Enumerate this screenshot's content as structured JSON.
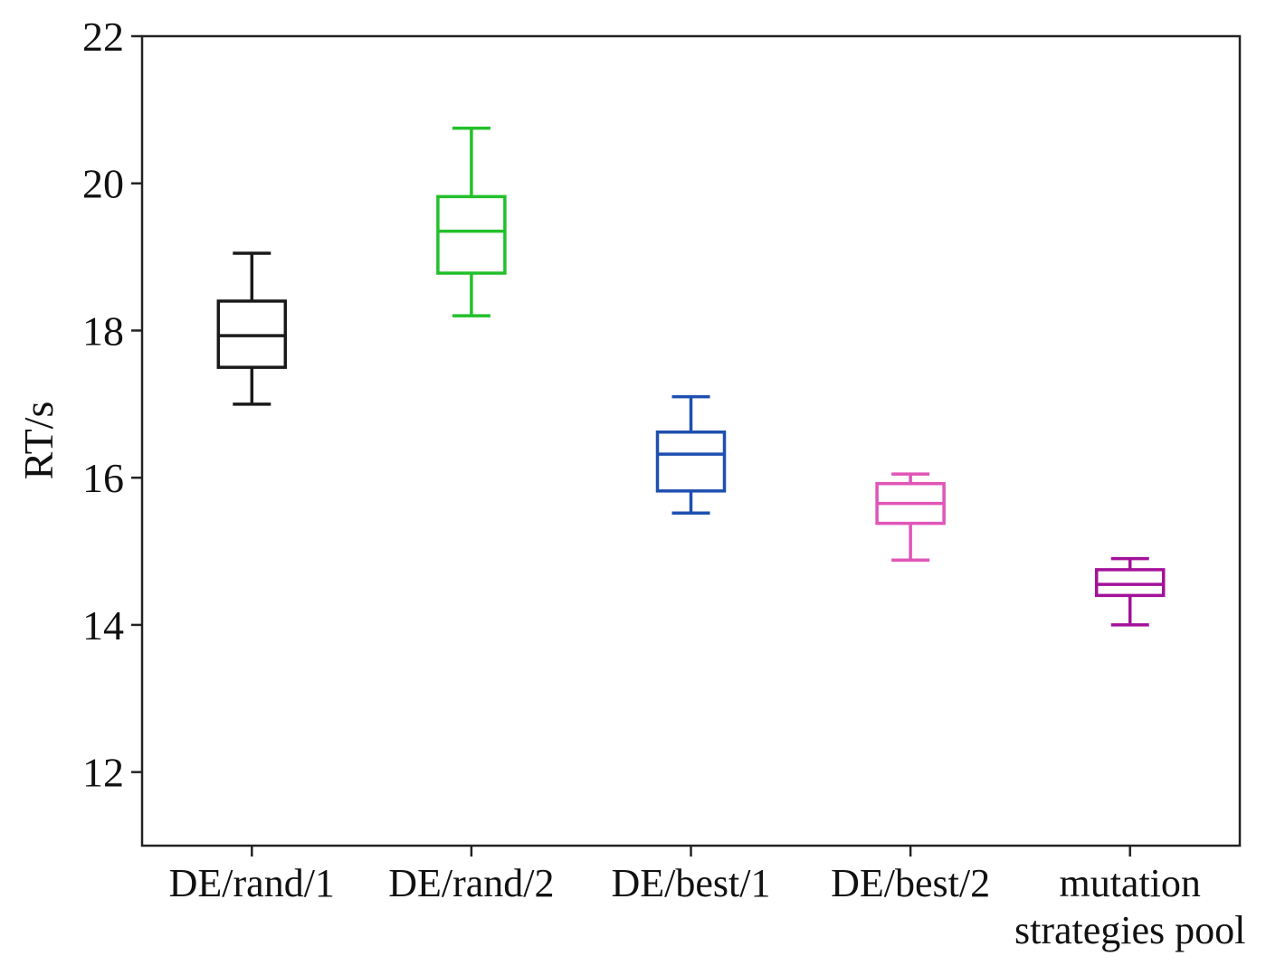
{
  "chart_data": {
    "type": "box",
    "ylabel": "RT/s",
    "xlabel": "",
    "ylim": [
      11,
      22
    ],
    "yticks": [
      12,
      14,
      16,
      18,
      20,
      22
    ],
    "grid": false,
    "categories": [
      [
        "DE/rand/1"
      ],
      [
        "DE/rand/2"
      ],
      [
        "DE/best/1"
      ],
      [
        "DE/best/2"
      ],
      [
        "mutation",
        "strategies pool"
      ]
    ],
    "boxes": [
      {
        "min": 17.0,
        "q1": 17.5,
        "median": 17.93,
        "q3": 18.4,
        "max": 19.05,
        "color": "#1a1a1a"
      },
      {
        "min": 18.2,
        "q1": 18.78,
        "median": 19.35,
        "q3": 19.82,
        "max": 20.75,
        "color": "#22c02a"
      },
      {
        "min": 15.52,
        "q1": 15.82,
        "median": 16.32,
        "q3": 16.62,
        "max": 17.1,
        "color": "#1f4fb0"
      },
      {
        "min": 14.88,
        "q1": 15.38,
        "median": 15.65,
        "q3": 15.92,
        "max": 16.05,
        "color": "#e055b8"
      },
      {
        "min": 14.0,
        "q1": 14.4,
        "median": 14.55,
        "q3": 14.75,
        "max": 14.9,
        "color": "#a3119a"
      }
    ]
  }
}
